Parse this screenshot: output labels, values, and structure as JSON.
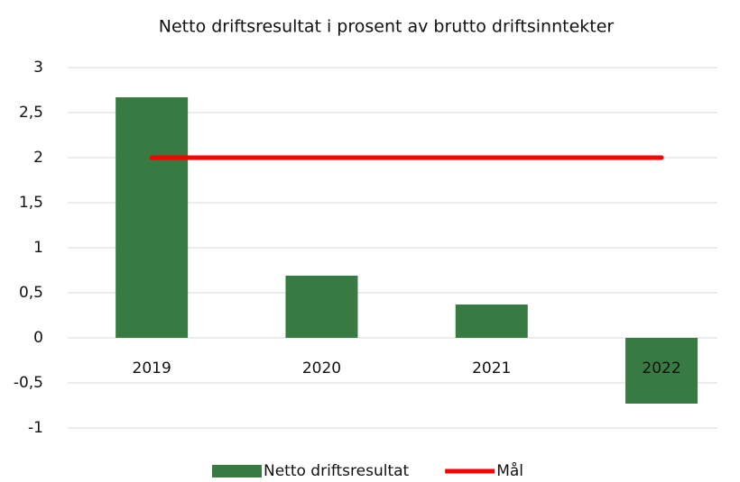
{
  "chart_data": {
    "type": "bar",
    "title": "Netto driftsresultat i prosent av brutto driftsinntekter",
    "categories": [
      "2019",
      "2020",
      "2021",
      "2022"
    ],
    "series": [
      {
        "name": "Netto driftsresultat",
        "type": "bar",
        "color": "#377a42",
        "values": [
          2.67,
          0.69,
          0.37,
          -0.73
        ]
      },
      {
        "name": "Mål",
        "type": "line",
        "color": "#ff0000",
        "values": [
          2,
          2,
          2,
          2
        ]
      }
    ],
    "ylim": [
      -1,
      3
    ],
    "yticks": [
      -1,
      {
        "value": -0.5,
        "label": "-0,5"
      },
      0,
      {
        "value": 0.5,
        "label": "0,5"
      },
      1,
      {
        "value": 1.5,
        "label": "1,5"
      },
      2,
      {
        "value": 2.5,
        "label": "2,5"
      },
      3
    ],
    "grid": true,
    "legend": "bottom"
  }
}
